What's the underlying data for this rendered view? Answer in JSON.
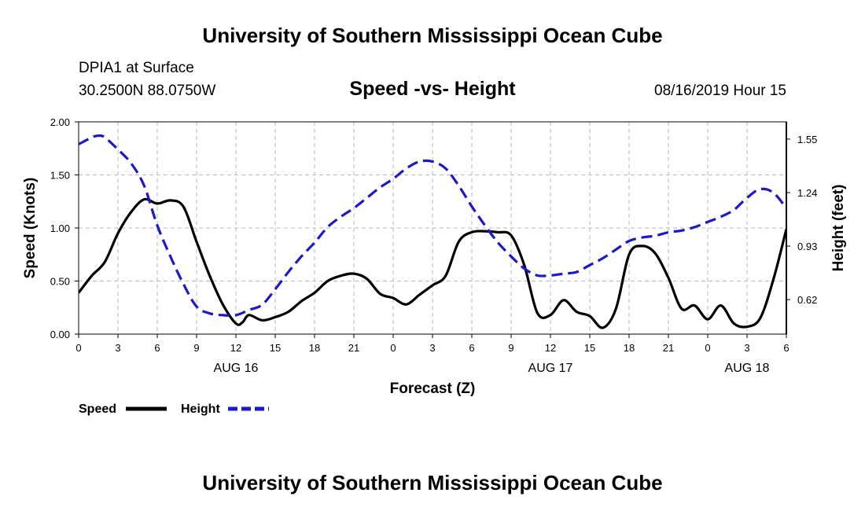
{
  "header": {
    "title": "University of Southern Mississippi Ocean Cube",
    "station": "DPIA1 at Surface",
    "coords": "30.2500N 88.0750W",
    "subtitle": "Speed -vs- Height",
    "date": "08/16/2019 Hour 15"
  },
  "footer": {
    "title": "University of Southern Mississippi Ocean Cube"
  },
  "colors": {
    "speed": "#000000",
    "height": "#1a1acc",
    "grid": "#b8b8b8"
  },
  "chart_data": {
    "type": "line",
    "title": "Speed -vs- Height",
    "xlabel": "Forecast (Z)",
    "ylabel": "Speed (Knots)",
    "y2label": "Height (feet)",
    "x_hours": [
      0,
      54
    ],
    "x_ticks": [
      {
        "h": 0,
        "label": "0"
      },
      {
        "h": 3,
        "label": "3"
      },
      {
        "h": 6,
        "label": "6"
      },
      {
        "h": 9,
        "label": "9"
      },
      {
        "h": 12,
        "label": "12"
      },
      {
        "h": 15,
        "label": "15"
      },
      {
        "h": 18,
        "label": "18"
      },
      {
        "h": 21,
        "label": "21"
      },
      {
        "h": 24,
        "label": "0"
      },
      {
        "h": 27,
        "label": "3"
      },
      {
        "h": 30,
        "label": "6"
      },
      {
        "h": 33,
        "label": "9"
      },
      {
        "h": 36,
        "label": "12"
      },
      {
        "h": 39,
        "label": "15"
      },
      {
        "h": 42,
        "label": "18"
      },
      {
        "h": 45,
        "label": "21"
      },
      {
        "h": 48,
        "label": "0"
      },
      {
        "h": 51,
        "label": "3"
      },
      {
        "h": 54,
        "label": "6"
      }
    ],
    "day_labels": [
      {
        "h": 12,
        "label": "AUG 16"
      },
      {
        "h": 36,
        "label": "AUG 17"
      },
      {
        "h": 51,
        "label": "AUG 18"
      }
    ],
    "ylim": [
      0,
      2.0
    ],
    "y_ticks": [
      "0.00",
      "0.50",
      "1.00",
      "1.50",
      "2.00"
    ],
    "y2lim": [
      0.42,
      1.65
    ],
    "y2_ticks": [
      "0.62",
      "0.93",
      "1.24",
      "1.55"
    ],
    "series": [
      {
        "name": "Speed",
        "axis": "left",
        "style": "solid",
        "x": [
          0,
          1,
          2,
          3,
          4,
          5,
          6,
          7,
          8,
          9,
          10,
          11,
          12,
          12.5,
          13,
          14,
          15,
          16,
          17,
          18,
          19,
          20,
          21,
          22,
          23,
          24,
          25,
          26,
          27,
          28,
          29,
          30,
          31,
          32,
          33,
          34,
          35,
          36,
          37,
          38,
          39,
          40,
          41,
          42,
          43,
          44,
          45,
          46,
          47,
          48,
          49,
          50,
          51,
          52,
          53,
          54
        ],
        "values": [
          0.39,
          0.55,
          0.68,
          0.95,
          1.15,
          1.27,
          1.23,
          1.26,
          1.2,
          0.87,
          0.55,
          0.28,
          0.1,
          0.11,
          0.18,
          0.13,
          0.16,
          0.21,
          0.31,
          0.39,
          0.5,
          0.55,
          0.57,
          0.52,
          0.38,
          0.34,
          0.28,
          0.37,
          0.46,
          0.55,
          0.87,
          0.96,
          0.97,
          0.96,
          0.93,
          0.65,
          0.2,
          0.18,
          0.32,
          0.21,
          0.17,
          0.06,
          0.24,
          0.75,
          0.83,
          0.76,
          0.53,
          0.24,
          0.27,
          0.14,
          0.27,
          0.1,
          0.07,
          0.15,
          0.51,
          0.99
        ]
      },
      {
        "name": "Height",
        "axis": "right",
        "style": "dashed",
        "x": [
          0,
          1,
          1.5,
          2,
          3,
          4,
          5,
          6,
          7,
          8,
          9,
          10,
          11,
          12,
          13,
          14,
          15,
          16,
          17,
          18,
          19,
          20,
          21,
          22,
          23,
          24,
          25,
          26,
          27,
          28,
          29,
          30,
          31,
          32,
          33,
          34,
          35,
          36,
          37,
          38,
          39,
          40,
          41,
          42,
          43,
          44,
          45,
          46,
          47,
          48,
          49,
          50,
          51,
          52,
          53,
          54
        ],
        "values": [
          1.52,
          1.56,
          1.57,
          1.56,
          1.49,
          1.41,
          1.28,
          1.05,
          0.87,
          0.71,
          0.58,
          0.54,
          0.53,
          0.53,
          0.56,
          0.59,
          0.68,
          0.78,
          0.87,
          0.95,
          1.04,
          1.1,
          1.15,
          1.21,
          1.27,
          1.32,
          1.38,
          1.42,
          1.42,
          1.38,
          1.28,
          1.16,
          1.05,
          0.95,
          0.87,
          0.8,
          0.76,
          0.76,
          0.77,
          0.78,
          0.82,
          0.86,
          0.91,
          0.96,
          0.98,
          0.99,
          1.01,
          1.02,
          1.04,
          1.07,
          1.1,
          1.14,
          1.21,
          1.26,
          1.24,
          1.15
        ]
      }
    ],
    "legend": [
      {
        "label": "Speed",
        "style": "solid"
      },
      {
        "label": "Height",
        "style": "dashed"
      }
    ],
    "grid": true
  }
}
